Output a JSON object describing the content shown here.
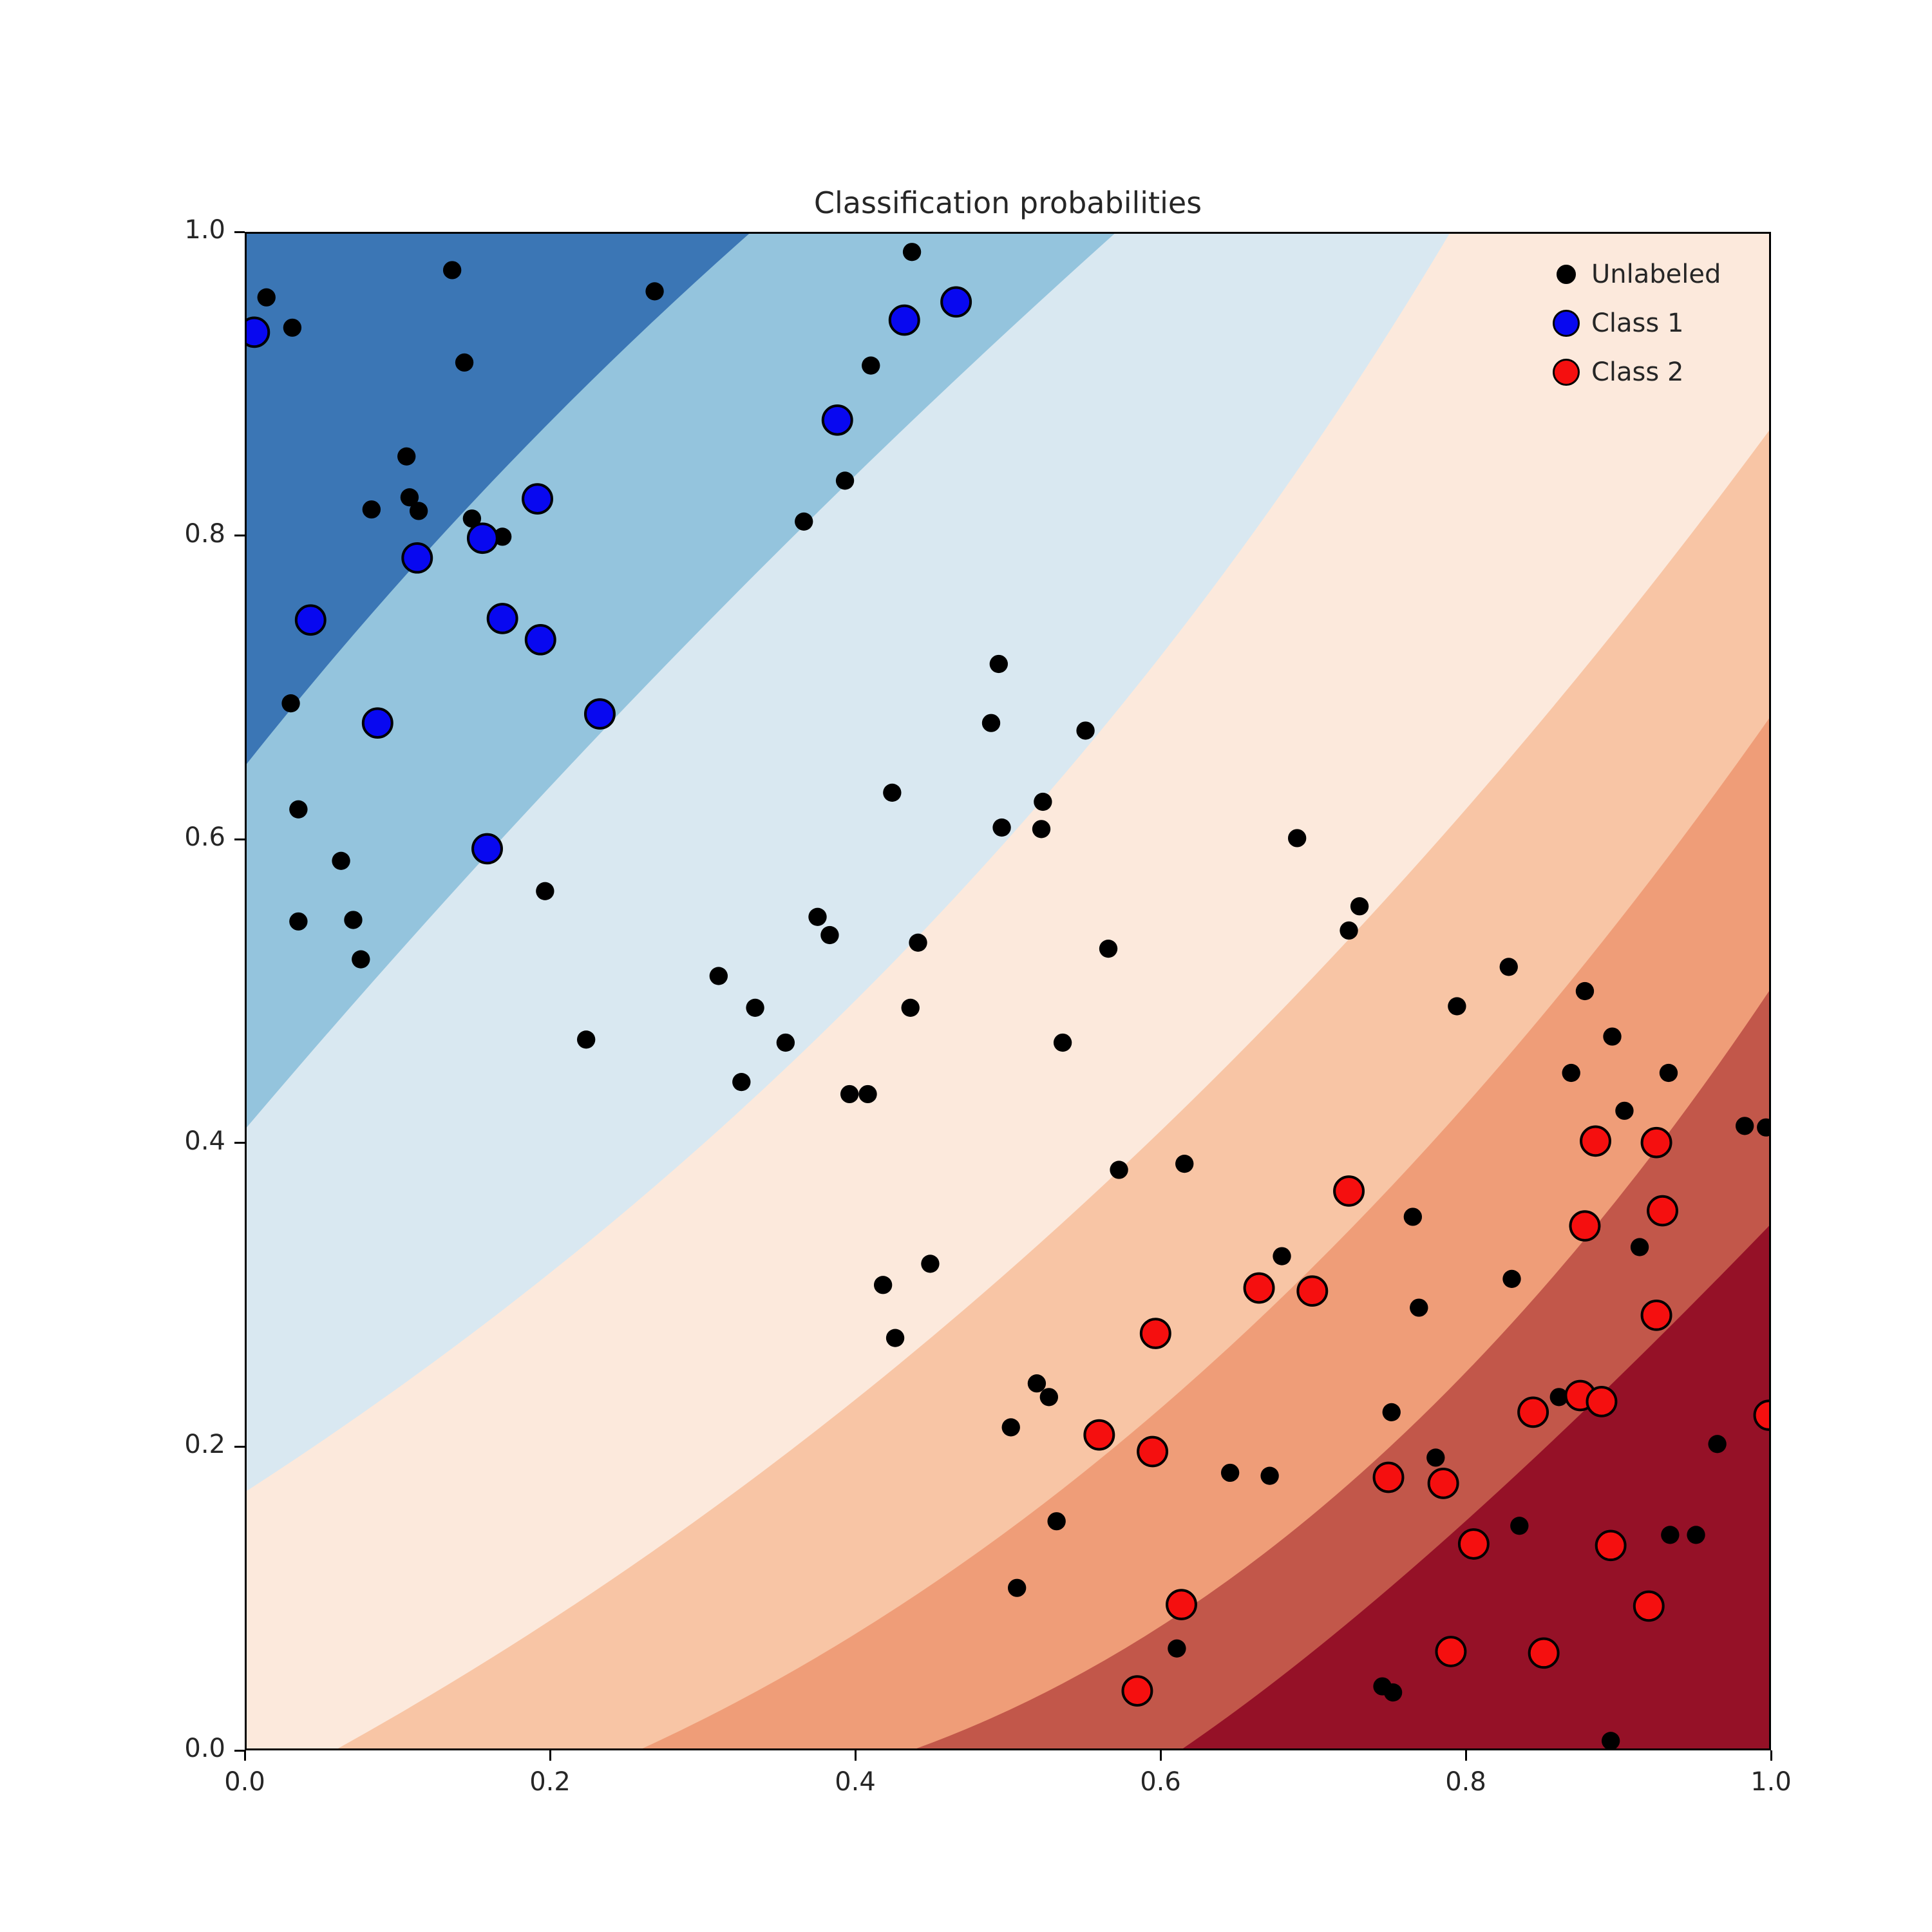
{
  "title": "Classification probabilities",
  "axes": {
    "x_ticks": [
      "0.0",
      "0.2",
      "0.4",
      "0.6",
      "0.8",
      "1.0"
    ],
    "y_ticks": [
      "0.0",
      "0.2",
      "0.4",
      "0.6",
      "0.8",
      "1.0"
    ],
    "xlim": [
      0,
      1
    ],
    "ylim": [
      0,
      1
    ]
  },
  "legend": {
    "items": [
      {
        "label": "Unlabeled",
        "color": "#000000"
      },
      {
        "label": "Class 1",
        "color": "#0808f0"
      },
      {
        "label": "Class 2",
        "color": "#f50f0f"
      }
    ]
  },
  "chart_data": {
    "type": "scatter",
    "title": "Classification probabilities",
    "xlabel": "",
    "ylabel": "",
    "xlim": [
      0,
      1
    ],
    "ylim": [
      0,
      1
    ],
    "grid": false,
    "legend_position": "upper right",
    "background": "contourf probability field, RdBu colormap, blue upper-left to dark red lower-right, diagonal curved bands",
    "contour_bands": {
      "colors": [
        "#3b76b5",
        "#94c4dd",
        "#d9e8f1",
        "#fce9dc",
        "#f8c5a5",
        "#ef9d78",
        "#c2574a",
        "#951127"
      ]
    },
    "series": [
      {
        "name": "Unlabeled",
        "marker_color": "#000000",
        "marker_edge": "none",
        "marker_radius": 6,
        "points": [
          [
            0.013,
            0.958
          ],
          [
            0.03,
            0.938
          ],
          [
            0.135,
            0.976
          ],
          [
            0.143,
            0.915
          ],
          [
            0.268,
            0.962
          ],
          [
            0.105,
            0.853
          ],
          [
            0.082,
            0.818
          ],
          [
            0.107,
            0.826
          ],
          [
            0.113,
            0.817
          ],
          [
            0.148,
            0.812
          ],
          [
            0.168,
            0.8
          ],
          [
            0.029,
            0.69
          ],
          [
            0.034,
            0.62
          ],
          [
            0.062,
            0.586
          ],
          [
            0.034,
            0.546
          ],
          [
            0.07,
            0.547
          ],
          [
            0.075,
            0.521
          ],
          [
            0.196,
            0.566
          ],
          [
            0.223,
            0.468
          ],
          [
            0.437,
            0.988
          ],
          [
            0.41,
            0.913
          ],
          [
            0.393,
            0.837
          ],
          [
            0.366,
            0.81
          ],
          [
            0.494,
            0.716
          ],
          [
            0.489,
            0.677
          ],
          [
            0.551,
            0.672
          ],
          [
            0.424,
            0.631
          ],
          [
            0.523,
            0.625
          ],
          [
            0.496,
            0.608
          ],
          [
            0.522,
            0.607
          ],
          [
            0.375,
            0.549
          ],
          [
            0.383,
            0.537
          ],
          [
            0.441,
            0.532
          ],
          [
            0.566,
            0.528
          ],
          [
            0.31,
            0.51
          ],
          [
            0.334,
            0.489
          ],
          [
            0.436,
            0.489
          ],
          [
            0.354,
            0.466
          ],
          [
            0.536,
            0.466
          ],
          [
            0.325,
            0.44
          ],
          [
            0.396,
            0.432
          ],
          [
            0.408,
            0.432
          ],
          [
            0.69,
            0.601
          ],
          [
            0.731,
            0.556
          ],
          [
            0.724,
            0.54
          ],
          [
            0.795,
            0.49
          ],
          [
            0.829,
            0.516
          ],
          [
            0.879,
            0.5
          ],
          [
            0.897,
            0.47
          ],
          [
            0.87,
            0.446
          ],
          [
            0.934,
            0.446
          ],
          [
            0.905,
            0.421
          ],
          [
            0.984,
            0.411
          ],
          [
            0.998,
            0.41
          ],
          [
            0.573,
            0.382
          ],
          [
            0.616,
            0.386
          ],
          [
            0.68,
            0.325
          ],
          [
            0.766,
            0.351
          ],
          [
            0.831,
            0.31
          ],
          [
            0.77,
            0.291
          ],
          [
            0.915,
            0.331
          ],
          [
            0.418,
            0.306
          ],
          [
            0.449,
            0.32
          ],
          [
            0.426,
            0.271
          ],
          [
            0.519,
            0.241
          ],
          [
            0.527,
            0.232
          ],
          [
            0.502,
            0.212
          ],
          [
            0.532,
            0.15
          ],
          [
            0.506,
            0.106
          ],
          [
            0.646,
            0.182
          ],
          [
            0.672,
            0.18
          ],
          [
            0.752,
            0.222
          ],
          [
            0.781,
            0.192
          ],
          [
            0.611,
            0.066
          ],
          [
            0.746,
            0.041
          ],
          [
            0.753,
            0.037
          ],
          [
            0.836,
            0.147
          ],
          [
            0.862,
            0.232
          ],
          [
            0.935,
            0.141
          ],
          [
            0.952,
            0.141
          ],
          [
            0.966,
            0.201
          ],
          [
            0.896,
            0.005
          ]
        ]
      },
      {
        "name": "Class 1",
        "marker_color": "#0808f0",
        "marker_edge": "#000000",
        "marker_radius": 9.5,
        "points": [
          [
            0.005,
            0.935
          ],
          [
            0.042,
            0.745
          ],
          [
            0.086,
            0.677
          ],
          [
            0.112,
            0.786
          ],
          [
            0.155,
            0.799
          ],
          [
            0.158,
            0.594
          ],
          [
            0.168,
            0.746
          ],
          [
            0.191,
            0.825
          ],
          [
            0.193,
            0.732
          ],
          [
            0.232,
            0.683
          ],
          [
            0.388,
            0.877
          ],
          [
            0.432,
            0.943
          ],
          [
            0.466,
            0.955
          ]
        ]
      },
      {
        "name": "Class 2",
        "marker_color": "#f50f0f",
        "marker_edge": "#000000",
        "marker_radius": 9.5,
        "points": [
          [
            0.56,
            0.207
          ],
          [
            0.585,
            0.038
          ],
          [
            0.595,
            0.196
          ],
          [
            0.597,
            0.274
          ],
          [
            0.614,
            0.095
          ],
          [
            0.665,
            0.304
          ],
          [
            0.7,
            0.302
          ],
          [
            0.724,
            0.368
          ],
          [
            0.75,
            0.179
          ],
          [
            0.786,
            0.175
          ],
          [
            0.791,
            0.064
          ],
          [
            0.806,
            0.135
          ],
          [
            0.845,
            0.222
          ],
          [
            0.852,
            0.063
          ],
          [
            0.876,
            0.233
          ],
          [
            0.879,
            0.345
          ],
          [
            0.89,
            0.229
          ],
          [
            0.896,
            0.134
          ],
          [
            0.886,
            0.401
          ],
          [
            0.921,
            0.094
          ],
          [
            0.926,
            0.4
          ],
          [
            0.93,
            0.355
          ],
          [
            0.926,
            0.286
          ],
          [
            1.0,
            0.22
          ]
        ]
      }
    ]
  }
}
